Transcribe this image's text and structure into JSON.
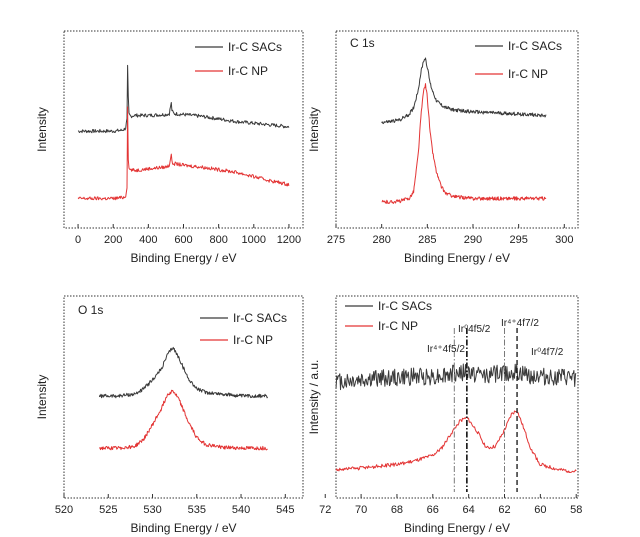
{
  "colors": {
    "sacs": "#3a3a3a",
    "np": "#e33434",
    "frame": "#333333"
  },
  "chart_data": [
    {
      "type": "line",
      "title": "",
      "xlabel": "Binding Energy / eV",
      "ylabel": "Intensity",
      "xlim": [
        -80,
        1280
      ],
      "xticks": [
        0,
        200,
        400,
        600,
        800,
        1000,
        1200
      ],
      "ylim": [
        0,
        1
      ],
      "reversed_x": false,
      "legend": {
        "placement": "top-right"
      },
      "series": [
        {
          "name": "Ir-C SACs",
          "color_key": "sacs",
          "x": [
            0,
            100,
            200,
            250,
            270,
            280,
            283,
            285,
            287,
            290,
            300,
            320,
            400,
            500,
            520,
            530,
            532,
            535,
            545,
            600,
            700,
            800,
            900,
            1000,
            1100,
            1200
          ],
          "y": [
            0.485,
            0.485,
            0.485,
            0.49,
            0.5,
            0.56,
            0.97,
            0.74,
            0.59,
            0.58,
            0.57,
            0.575,
            0.575,
            0.58,
            0.585,
            0.65,
            0.62,
            0.6,
            0.585,
            0.58,
            0.57,
            0.555,
            0.54,
            0.53,
            0.52,
            0.51
          ]
        },
        {
          "name": "Ir-C NP",
          "color_key": "np",
          "x": [
            0,
            100,
            200,
            250,
            270,
            280,
            283,
            285,
            287,
            290,
            300,
            320,
            400,
            500,
            520,
            530,
            532,
            535,
            545,
            600,
            700,
            800,
            900,
            1000,
            1100,
            1200
          ],
          "y": [
            0.1,
            0.1,
            0.1,
            0.105,
            0.11,
            0.18,
            0.8,
            0.38,
            0.27,
            0.27,
            0.265,
            0.26,
            0.27,
            0.28,
            0.29,
            0.36,
            0.33,
            0.3,
            0.3,
            0.29,
            0.28,
            0.265,
            0.25,
            0.225,
            0.2,
            0.18
          ]
        }
      ]
    },
    {
      "type": "line",
      "title": "C 1s",
      "xlabel": "Binding Energy / eV",
      "ylabel": "Intensity",
      "xlim": [
        275,
        301.5
      ],
      "xticks": [
        275,
        280,
        285,
        290,
        295,
        300
      ],
      "ylim": [
        0,
        1
      ],
      "reversed_x": false,
      "legend": {
        "placement": "top-right"
      },
      "series": [
        {
          "name": "Ir-C SACs",
          "color_key": "sacs",
          "x": [
            280,
            281,
            282,
            283,
            283.5,
            284,
            284.3,
            284.6,
            284.8,
            285,
            285.3,
            285.6,
            286,
            286.5,
            287,
            288,
            289,
            290,
            292,
            294,
            296,
            298
          ],
          "y": [
            0.535,
            0.54,
            0.55,
            0.58,
            0.62,
            0.72,
            0.82,
            0.89,
            0.9,
            0.85,
            0.76,
            0.71,
            0.66,
            0.635,
            0.62,
            0.605,
            0.6,
            0.595,
            0.59,
            0.585,
            0.58,
            0.575
          ]
        },
        {
          "name": "Ir-C NP",
          "color_key": "np",
          "x": [
            280,
            281,
            282,
            283,
            283.5,
            284,
            284.3,
            284.6,
            284.8,
            285,
            285.3,
            285.6,
            286,
            286.5,
            287,
            288,
            289,
            290,
            292,
            294,
            296,
            298
          ],
          "y": [
            0.08,
            0.08,
            0.085,
            0.1,
            0.14,
            0.35,
            0.57,
            0.72,
            0.75,
            0.68,
            0.48,
            0.36,
            0.25,
            0.17,
            0.13,
            0.11,
            0.105,
            0.1,
            0.1,
            0.1,
            0.1,
            0.1
          ]
        }
      ]
    },
    {
      "type": "line",
      "title": "O 1s",
      "xlabel": "Binding Energy / eV",
      "ylabel": "Intensity",
      "xlim": [
        520,
        547
      ],
      "xticks": [
        520,
        525,
        530,
        535,
        540,
        545
      ],
      "ylim": [
        0,
        1
      ],
      "reversed_x": false,
      "legend": {
        "placement": "top-right"
      },
      "series": [
        {
          "name": "Ir-C SACs",
          "color_key": "sacs",
          "x": [
            524,
            526,
            528,
            529,
            530,
            531,
            531.7,
            532.3,
            533,
            534,
            535,
            536,
            538,
            540,
            543
          ],
          "y": [
            0.5,
            0.5,
            0.51,
            0.54,
            0.59,
            0.65,
            0.73,
            0.77,
            0.71,
            0.6,
            0.54,
            0.52,
            0.51,
            0.5,
            0.5
          ]
        },
        {
          "name": "Ir-C NP",
          "color_key": "np",
          "x": [
            524,
            526,
            528,
            529,
            530,
            531,
            531.7,
            532.3,
            533,
            534,
            535,
            536,
            538,
            540,
            543
          ],
          "y": [
            0.21,
            0.21,
            0.22,
            0.26,
            0.34,
            0.43,
            0.51,
            0.53,
            0.48,
            0.36,
            0.27,
            0.23,
            0.215,
            0.21,
            0.21
          ]
        }
      ]
    },
    {
      "type": "line",
      "title": "",
      "xlabel": "Binding Energy / eV",
      "ylabel": "Intensity / a.u.",
      "xlim": [
        71.4,
        57.9
      ],
      "xticks": [
        72,
        70,
        68,
        66,
        64,
        62,
        60,
        58
      ],
      "ylim": [
        0,
        1
      ],
      "reversed_x": true,
      "legend": {
        "placement": "top-left"
      },
      "annotations": [
        "Ir⁴⁺4f5/2",
        "Ir⁰4f5/2",
        "Ir⁴⁺4f7/2",
        "Ir⁰4f7/2"
      ],
      "peak_lines": [
        {
          "x": 64.8,
          "style": "dash-dot"
        },
        {
          "x": 64.1,
          "style": "dash-dot-bold"
        },
        {
          "x": 62.0,
          "style": "dash-dot"
        },
        {
          "x": 61.3,
          "style": "dash"
        }
      ],
      "series": [
        {
          "name": "Ir-C SACs",
          "color_key": "sacs",
          "x": [
            71.4,
            70,
            69,
            68,
            67,
            66,
            65,
            64.5,
            64,
            63.5,
            63,
            62.5,
            62,
            61.5,
            61,
            60,
            59,
            58
          ],
          "y": [
            0.58,
            0.59,
            0.6,
            0.6,
            0.61,
            0.61,
            0.62,
            0.63,
            0.63,
            0.62,
            0.62,
            0.62,
            0.63,
            0.63,
            0.62,
            0.61,
            0.6,
            0.6
          ]
        },
        {
          "name": "Ir-C NP",
          "color_key": "np",
          "x": [
            71.4,
            70,
            68,
            67,
            66,
            65.5,
            65,
            64.5,
            64.1,
            63.5,
            63,
            62.5,
            62,
            61.6,
            61.3,
            61,
            60.5,
            60,
            59,
            58
          ],
          "y": [
            0.09,
            0.1,
            0.12,
            0.14,
            0.17,
            0.21,
            0.29,
            0.36,
            0.38,
            0.3,
            0.21,
            0.22,
            0.31,
            0.4,
            0.42,
            0.34,
            0.2,
            0.12,
            0.09,
            0.08
          ]
        }
      ]
    }
  ]
}
